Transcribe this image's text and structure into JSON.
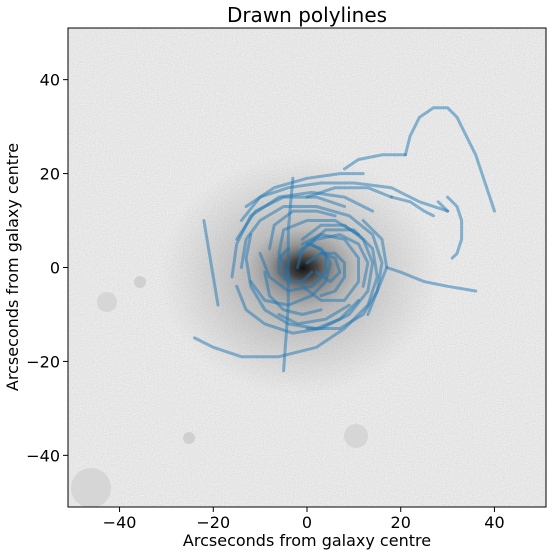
{
  "chart_data": {
    "type": "line",
    "title": "Drawn polylines",
    "xlabel": "Arcseconds from galaxy centre",
    "ylabel": "Arcseconds from galaxy centre",
    "xlim": [
      -51,
      51
    ],
    "ylim": [
      -51,
      51
    ],
    "xticks": [
      -40,
      -20,
      0,
      20,
      40
    ],
    "yticks": [
      -40,
      -20,
      0,
      20,
      40
    ],
    "xtick_labels": [
      "−40",
      "−20",
      "0",
      "20",
      "40"
    ],
    "ytick_labels": [
      "−40",
      "−20",
      "0",
      "20",
      "40"
    ],
    "grid": false,
    "background": "grayscale galaxy image",
    "line_color": "#1f77b4",
    "series": [
      {
        "points": [
          [
            -24,
            -15
          ],
          [
            -20,
            -17
          ],
          [
            -14,
            -19
          ],
          [
            -6,
            -19
          ],
          [
            2,
            -17
          ],
          [
            8,
            -13
          ],
          [
            13,
            -8
          ],
          [
            15,
            -2
          ],
          [
            14,
            4
          ],
          [
            10,
            8
          ],
          [
            4,
            8
          ],
          [
            -1,
            4
          ],
          [
            -2,
            0
          ]
        ]
      },
      {
        "points": [
          [
            -22,
            10
          ],
          [
            -21,
            4
          ],
          [
            -20,
            -2
          ],
          [
            -19,
            -8
          ]
        ]
      },
      {
        "points": [
          [
            -14,
            0
          ],
          [
            -13,
            6
          ],
          [
            -10,
            10
          ],
          [
            -5,
            13
          ],
          [
            2,
            13
          ],
          [
            9,
            11
          ],
          [
            14,
            7
          ],
          [
            16,
            1
          ],
          [
            15,
            -5
          ],
          [
            12,
            -10
          ],
          [
            7,
            -13
          ],
          [
            0,
            -13
          ]
        ]
      },
      {
        "points": [
          [
            -15,
            6
          ],
          [
            -11,
            12
          ],
          [
            -5,
            15
          ],
          [
            2,
            15
          ],
          [
            8,
            13
          ]
        ]
      },
      {
        "points": [
          [
            -16,
            -2
          ],
          [
            -15,
            5
          ],
          [
            -12,
            11
          ],
          [
            -6,
            15
          ],
          [
            1,
            16
          ],
          [
            8,
            15
          ],
          [
            14,
            12
          ]
        ]
      },
      {
        "points": [
          [
            -14,
            10
          ],
          [
            -10,
            15
          ],
          [
            -4,
            17
          ],
          [
            3,
            18
          ],
          [
            10,
            18
          ],
          [
            18,
            17
          ],
          [
            24,
            14
          ],
          [
            30,
            12
          ]
        ]
      },
      {
        "points": [
          [
            -15,
            -4
          ],
          [
            -13,
            -9
          ],
          [
            -9,
            -12
          ],
          [
            -3,
            -14
          ],
          [
            3,
            -13
          ],
          [
            9,
            -10
          ],
          [
            13,
            -5
          ],
          [
            14,
            1
          ],
          [
            12,
            6
          ],
          [
            8,
            9
          ],
          [
            3,
            9
          ],
          [
            -1,
            6
          ]
        ]
      },
      {
        "points": [
          [
            -12,
            -3
          ],
          [
            -9,
            -7
          ],
          [
            -4,
            -8
          ],
          [
            1,
            -6
          ],
          [
            4,
            -3
          ],
          [
            5,
            1
          ],
          [
            3,
            4
          ],
          [
            0,
            5
          ]
        ]
      },
      {
        "points": [
          [
            -10,
            3
          ],
          [
            -8,
            -2
          ],
          [
            -4,
            -5
          ],
          [
            1,
            -4
          ],
          [
            4,
            -1
          ],
          [
            4,
            3
          ],
          [
            1,
            5
          ]
        ]
      },
      {
        "points": [
          [
            -2,
            3
          ],
          [
            2,
            6
          ],
          [
            7,
            7
          ],
          [
            11,
            5
          ],
          [
            13,
            1
          ],
          [
            12,
            -4
          ]
        ]
      },
      {
        "points": [
          [
            -4,
            -2
          ],
          [
            -6,
            3
          ],
          [
            -5,
            8
          ],
          [
            0,
            10
          ],
          [
            6,
            10
          ],
          [
            11,
            7
          ]
        ]
      },
      {
        "points": [
          [
            -1,
            -4
          ],
          [
            3,
            -7
          ],
          [
            8,
            -7
          ],
          [
            11,
            -3
          ],
          [
            11,
            2
          ],
          [
            8,
            6
          ],
          [
            3,
            7
          ],
          [
            -1,
            5
          ]
        ]
      },
      {
        "points": [
          [
            -6,
            -10
          ],
          [
            -2,
            -12
          ],
          [
            4,
            -11
          ],
          [
            9,
            -8
          ]
        ]
      },
      {
        "points": [
          [
            -8,
            4
          ],
          [
            -7,
            9
          ],
          [
            -3,
            12
          ],
          [
            2,
            12
          ],
          [
            6,
            11
          ]
        ]
      },
      {
        "points": [
          [
            -9,
            -1
          ],
          [
            -8,
            -6
          ],
          [
            -5,
            -9
          ],
          [
            -1,
            -10
          ],
          [
            3,
            -9
          ]
        ]
      },
      {
        "points": [
          [
            0,
            1
          ],
          [
            3,
            3
          ],
          [
            6,
            3
          ],
          [
            8,
            1
          ],
          [
            8,
            -2
          ],
          [
            6,
            -5
          ],
          [
            3,
            -6
          ]
        ]
      },
      {
        "points": [
          [
            1,
            -1
          ],
          [
            -1,
            -3
          ],
          [
            -4,
            -3
          ],
          [
            -6,
            -1
          ],
          [
            -6,
            2
          ],
          [
            -4,
            4
          ]
        ]
      },
      {
        "points": [
          [
            2,
            -1
          ],
          [
            5,
            -3
          ],
          [
            7,
            -1
          ],
          [
            6,
            2
          ],
          [
            3,
            3
          ]
        ]
      },
      {
        "points": [
          [
            -12,
            7
          ],
          [
            -13,
            2
          ],
          [
            -12,
            -4
          ],
          [
            -9,
            -9
          ],
          [
            -4,
            -12
          ],
          [
            2,
            -13
          ],
          [
            7,
            -11
          ],
          [
            11,
            -7
          ]
        ]
      },
      {
        "points": [
          [
            13,
            -10
          ],
          [
            15,
            -5
          ],
          [
            17,
            0
          ],
          [
            16,
            6
          ],
          [
            12,
            10
          ]
        ]
      },
      {
        "points": [
          [
            -3,
            19
          ],
          [
            -4,
            8
          ],
          [
            -4,
            -8
          ],
          [
            -5,
            -22
          ]
        ]
      },
      {
        "points": [
          [
            -13,
            13
          ],
          [
            -7,
            17
          ],
          [
            0,
            19
          ],
          [
            7,
            20
          ],
          [
            12,
            20
          ]
        ]
      },
      {
        "points": [
          [
            8,
            21
          ],
          [
            11,
            23
          ],
          [
            16,
            24
          ],
          [
            21,
            24
          ]
        ]
      },
      {
        "points": [
          [
            17,
            0
          ],
          [
            20,
            -1
          ],
          [
            25,
            -3
          ],
          [
            30,
            -4
          ],
          [
            36,
            -5
          ]
        ]
      },
      {
        "points": [
          [
            21,
            24
          ],
          [
            22,
            28
          ],
          [
            24,
            32
          ],
          [
            27,
            34
          ],
          [
            30,
            34
          ],
          [
            32,
            32
          ],
          [
            34,
            28
          ],
          [
            36,
            24
          ],
          [
            38,
            18
          ],
          [
            40,
            12
          ]
        ]
      },
      {
        "points": [
          [
            30,
            15
          ],
          [
            32,
            13
          ],
          [
            33,
            10
          ],
          [
            33,
            6
          ],
          [
            32,
            3
          ],
          [
            31,
            2
          ]
        ]
      },
      {
        "points": [
          [
            28,
            14
          ],
          [
            30,
            12
          ]
        ]
      },
      {
        "points": [
          [
            0,
            15
          ],
          [
            6,
            17
          ],
          [
            13,
            17
          ],
          [
            18,
            15
          ]
        ]
      },
      {
        "points": [
          [
            18,
            15
          ],
          [
            22,
            14
          ],
          [
            25,
            12
          ],
          [
            27,
            11
          ]
        ]
      }
    ]
  }
}
